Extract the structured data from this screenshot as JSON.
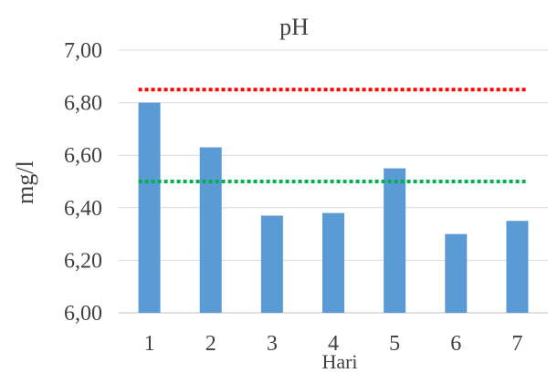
{
  "chart_data": {
    "type": "bar",
    "title": "pH",
    "xlabel": "Hari",
    "ylabel": "mg/l",
    "categories": [
      "1",
      "2",
      "3",
      "4",
      "5",
      "6",
      "7"
    ],
    "series": [
      {
        "values": [
          6.8,
          6.63,
          6.37,
          6.38,
          6.55,
          6.3,
          6.35
        ],
        "color": "#5B9BD5"
      }
    ],
    "reference_lines": [
      {
        "value": 6.85,
        "color": "#FF0000",
        "style": "dotted"
      },
      {
        "value": 6.5,
        "color": "#00B050",
        "style": "dotted"
      }
    ],
    "ylim": [
      6.0,
      7.0
    ],
    "yticks": [
      "6,00",
      "6,20",
      "6,40",
      "6,60",
      "6,80",
      "7,00"
    ],
    "grid": true,
    "legend": "none"
  }
}
